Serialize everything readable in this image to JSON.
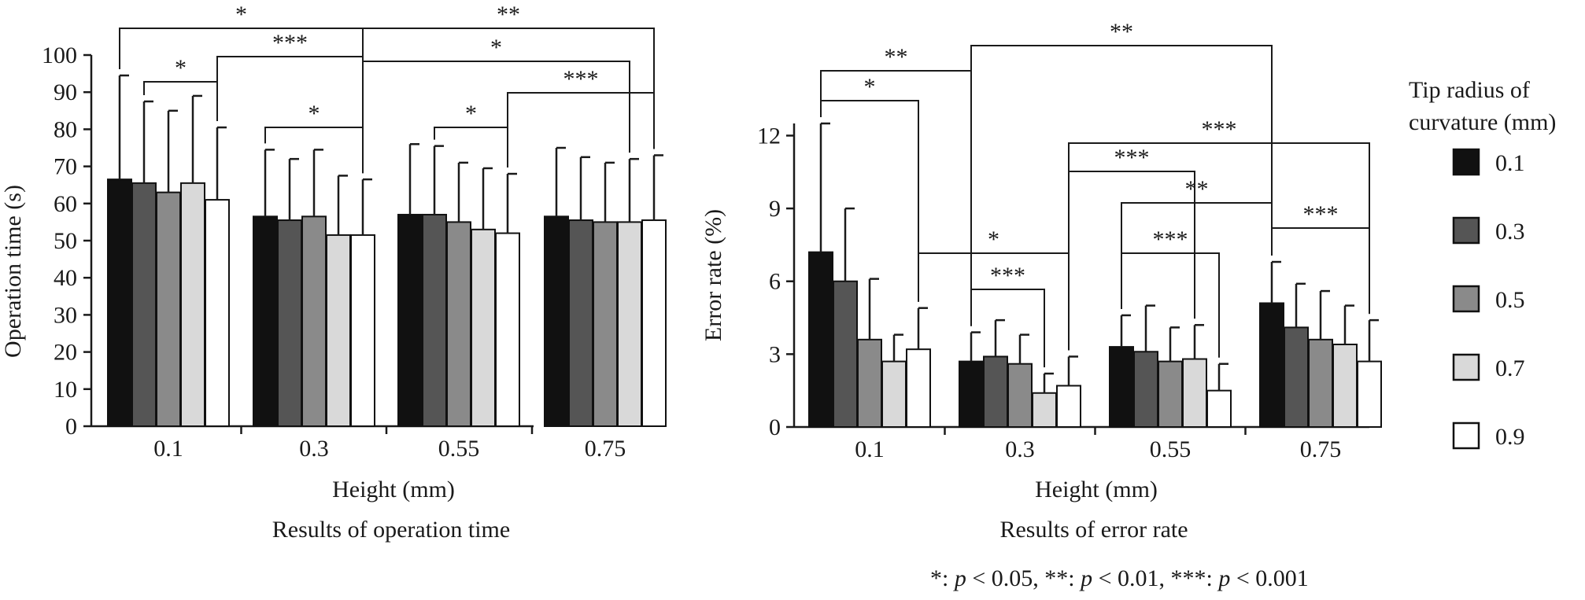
{
  "colors": {
    "0.1": "#111111",
    "0.3": "#555555",
    "0.5": "#8a8a8a",
    "0.7": "#d9d9d9",
    "0.9": "#ffffff"
  },
  "legend": {
    "title": [
      "Tip radius of",
      "curvature (mm)"
    ],
    "items": [
      "0.1",
      "0.3",
      "0.5",
      "0.7",
      "0.9"
    ]
  },
  "footnote": {
    "parts": [
      {
        "t": "*: ",
        "i": false
      },
      {
        "t": "p",
        "i": true
      },
      {
        "t": " < 0.05, **: ",
        "i": false
      },
      {
        "t": "p",
        "i": true
      },
      {
        "t": " < 0.01, ***: ",
        "i": false
      },
      {
        "t": "p",
        "i": true
      },
      {
        "t": " < 0.001",
        "i": false
      }
    ]
  },
  "chart_data": [
    {
      "type": "bar",
      "caption": "Results of operation time",
      "xlabel": "Height (mm)",
      "ylabel": "Operation time (s)",
      "ylim": [
        0,
        100
      ],
      "yticks": [
        0,
        10,
        20,
        30,
        40,
        50,
        60,
        70,
        80,
        90,
        100
      ],
      "categories": [
        "0.1",
        "0.3",
        "0.55",
        "0.75"
      ],
      "series": [
        {
          "name": "0.1",
          "values": [
            66.5,
            56.5,
            57,
            56.5
          ],
          "errors": [
            28,
            18,
            19,
            18.5
          ]
        },
        {
          "name": "0.3",
          "values": [
            65.5,
            55.5,
            57,
            55.5
          ],
          "errors": [
            22,
            16.5,
            18.5,
            17
          ]
        },
        {
          "name": "0.5",
          "values": [
            63,
            56.5,
            55,
            55
          ],
          "errors": [
            22,
            18,
            16,
            16
          ]
        },
        {
          "name": "0.7",
          "values": [
            65.5,
            51.5,
            53,
            55
          ],
          "errors": [
            23.5,
            16,
            16.5,
            17
          ]
        },
        {
          "name": "0.9",
          "values": [
            61,
            51.5,
            52,
            55.5
          ],
          "errors": [
            19.5,
            15,
            16,
            17.5
          ]
        }
      ],
      "significance": [
        {
          "from": [
            "0.1",
            "0.1"
          ],
          "to": [
            "0.3",
            "0.9"
          ],
          "label": "*"
        },
        {
          "from": [
            "0.1",
            "0.3"
          ],
          "to": [
            "0.1",
            "0.9"
          ],
          "label": "*"
        },
        {
          "from": [
            "0.3",
            "0.1"
          ],
          "to": [
            "0.3",
            "0.9"
          ],
          "label": "*"
        },
        {
          "from": [
            "0.1",
            "0.9"
          ],
          "to": [
            "0.3",
            "0.9"
          ],
          "label": "***"
        },
        {
          "from": [
            "0.3",
            "0.9"
          ],
          "to": [
            "0.75",
            "0.9"
          ],
          "label": "**"
        },
        {
          "from": [
            "0.3",
            "0.9"
          ],
          "to": [
            "0.75",
            "0.7"
          ],
          "label": "*"
        },
        {
          "from": [
            "0.55",
            "0.3"
          ],
          "to": [
            "0.55",
            "0.9"
          ],
          "label": "*"
        },
        {
          "from": [
            "0.55",
            "0.9"
          ],
          "to": [
            "0.75",
            "0.9"
          ],
          "label": "***"
        }
      ]
    },
    {
      "type": "bar",
      "caption": "Results of error rate",
      "xlabel": "Height (mm)",
      "ylabel": "Error rate (%)",
      "ylim": [
        0,
        12.5
      ],
      "yticks": [
        0,
        3,
        6,
        9,
        12
      ],
      "categories": [
        "0.1",
        "0.3",
        "0.55",
        "0.75"
      ],
      "series": [
        {
          "name": "0.1",
          "values": [
            7.2,
            2.7,
            3.3,
            5.1
          ],
          "errors": [
            5.3,
            1.2,
            1.3,
            1.7
          ]
        },
        {
          "name": "0.3",
          "values": [
            6.0,
            2.9,
            3.1,
            4.1
          ],
          "errors": [
            3.0,
            1.5,
            1.9,
            1.8
          ]
        },
        {
          "name": "0.5",
          "values": [
            3.6,
            2.6,
            2.7,
            3.6
          ],
          "errors": [
            2.5,
            1.2,
            1.4,
            2.0
          ]
        },
        {
          "name": "0.7",
          "values": [
            2.7,
            1.4,
            2.8,
            3.4
          ],
          "errors": [
            1.1,
            0.8,
            1.4,
            1.6
          ]
        },
        {
          "name": "0.9",
          "values": [
            3.2,
            1.7,
            1.5,
            2.7
          ],
          "errors": [
            1.7,
            1.2,
            1.1,
            1.7
          ]
        }
      ],
      "significance": [
        {
          "from": [
            "0.1",
            "0.1"
          ],
          "to": [
            "0.3",
            "0.1"
          ],
          "label": "**"
        },
        {
          "from": [
            "0.1",
            "0.1"
          ],
          "to": [
            "0.1",
            "0.9"
          ],
          "label": "*"
        },
        {
          "from": [
            "0.3",
            "0.1"
          ],
          "to": [
            "0.75",
            "0.1"
          ],
          "label": "**"
        },
        {
          "from": [
            "0.1",
            "0.9"
          ],
          "to": [
            "0.3",
            "0.9"
          ],
          "label": "*"
        },
        {
          "from": [
            "0.3",
            "0.1"
          ],
          "to": [
            "0.3",
            "0.7"
          ],
          "label": "***"
        },
        {
          "from": [
            "0.3",
            "0.9"
          ],
          "to": [
            "0.75",
            "0.9"
          ],
          "label": "***"
        },
        {
          "from": [
            "0.3",
            "0.9"
          ],
          "to": [
            "0.55",
            "0.7"
          ],
          "label": "***"
        },
        {
          "from": [
            "0.55",
            "0.1"
          ],
          "to": [
            "0.75",
            "0.1"
          ],
          "label": "**"
        },
        {
          "from": [
            "0.55",
            "0.1"
          ],
          "to": [
            "0.55",
            "0.9"
          ],
          "label": "***"
        },
        {
          "from": [
            "0.75",
            "0.1"
          ],
          "to": [
            "0.75",
            "0.9"
          ],
          "label": "***"
        }
      ]
    }
  ]
}
